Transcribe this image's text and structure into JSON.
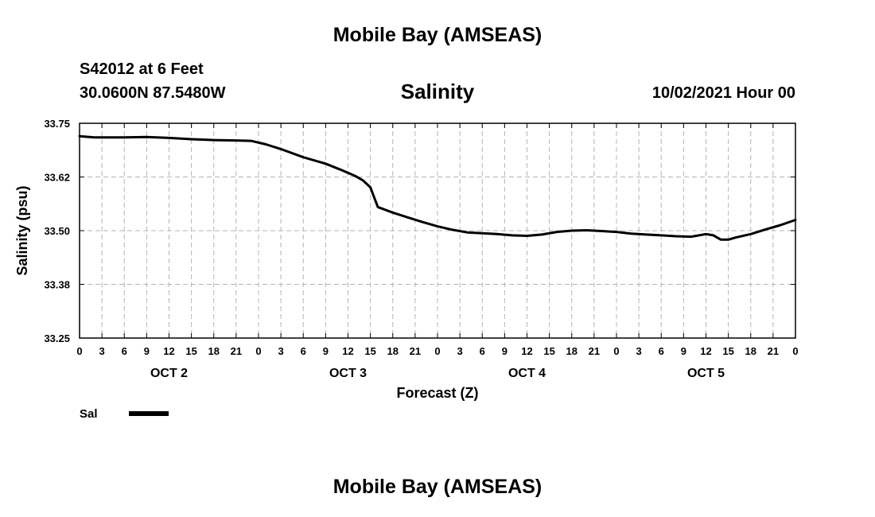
{
  "header": {
    "top_title": "Mobile Bay (AMSEAS)",
    "station": "S42012 at 6 Feet",
    "coordinates": "30.0600N  87.5480W",
    "chart_title": "Salinity",
    "date": "10/02/2021 Hour 00",
    "bottom_title": "Mobile Bay (AMSEAS)"
  },
  "chart_data": {
    "type": "line",
    "title": "Salinity",
    "xlabel": "Forecast (Z)",
    "ylabel": "Salinity (psu)",
    "ylim": [
      33.25,
      33.75
    ],
    "xlim_hours": [
      0,
      96
    ],
    "yticks": [
      "33.25",
      "33.38",
      "33.50",
      "33.62",
      "33.75"
    ],
    "ytick_values": [
      33.25,
      33.375,
      33.5,
      33.625,
      33.75
    ],
    "xtick_labels": [
      "0",
      "3",
      "6",
      "9",
      "12",
      "15",
      "18",
      "21",
      "0",
      "3",
      "6",
      "9",
      "12",
      "15",
      "18",
      "21",
      "0",
      "3",
      "6",
      "9",
      "12",
      "15",
      "18",
      "21",
      "0",
      "3",
      "6",
      "9",
      "12",
      "15",
      "18",
      "21",
      "0"
    ],
    "day_labels": [
      "OCT 2",
      "OCT 3",
      "OCT 4",
      "OCT 5"
    ],
    "grid": true,
    "line_color": "#000000",
    "series": [
      {
        "name": "Sal",
        "x_hours": [
          0,
          2,
          6,
          9,
          12,
          15,
          18,
          21,
          23,
          25,
          27,
          30,
          33,
          35,
          37,
          38,
          39,
          40,
          42,
          44,
          46,
          48,
          50,
          52,
          54,
          56,
          58,
          60,
          62,
          64,
          66,
          68,
          70,
          72,
          74,
          76,
          78,
          80,
          82,
          84,
          85,
          86,
          87,
          88,
          90,
          92,
          94,
          96
        ],
        "values": [
          33.72,
          33.717,
          33.717,
          33.718,
          33.716,
          33.713,
          33.711,
          33.71,
          33.709,
          33.701,
          33.69,
          33.671,
          33.656,
          33.642,
          33.627,
          33.617,
          33.601,
          33.555,
          33.542,
          33.531,
          33.52,
          33.51,
          33.502,
          33.496,
          33.494,
          33.492,
          33.489,
          33.488,
          33.491,
          33.497,
          33.5,
          33.501,
          33.499,
          33.497,
          33.493,
          33.491,
          33.489,
          33.487,
          33.486,
          33.492,
          33.489,
          33.479,
          33.479,
          33.484,
          33.492,
          33.503,
          33.513,
          33.525
        ]
      }
    ],
    "legend": "bottom-left"
  }
}
